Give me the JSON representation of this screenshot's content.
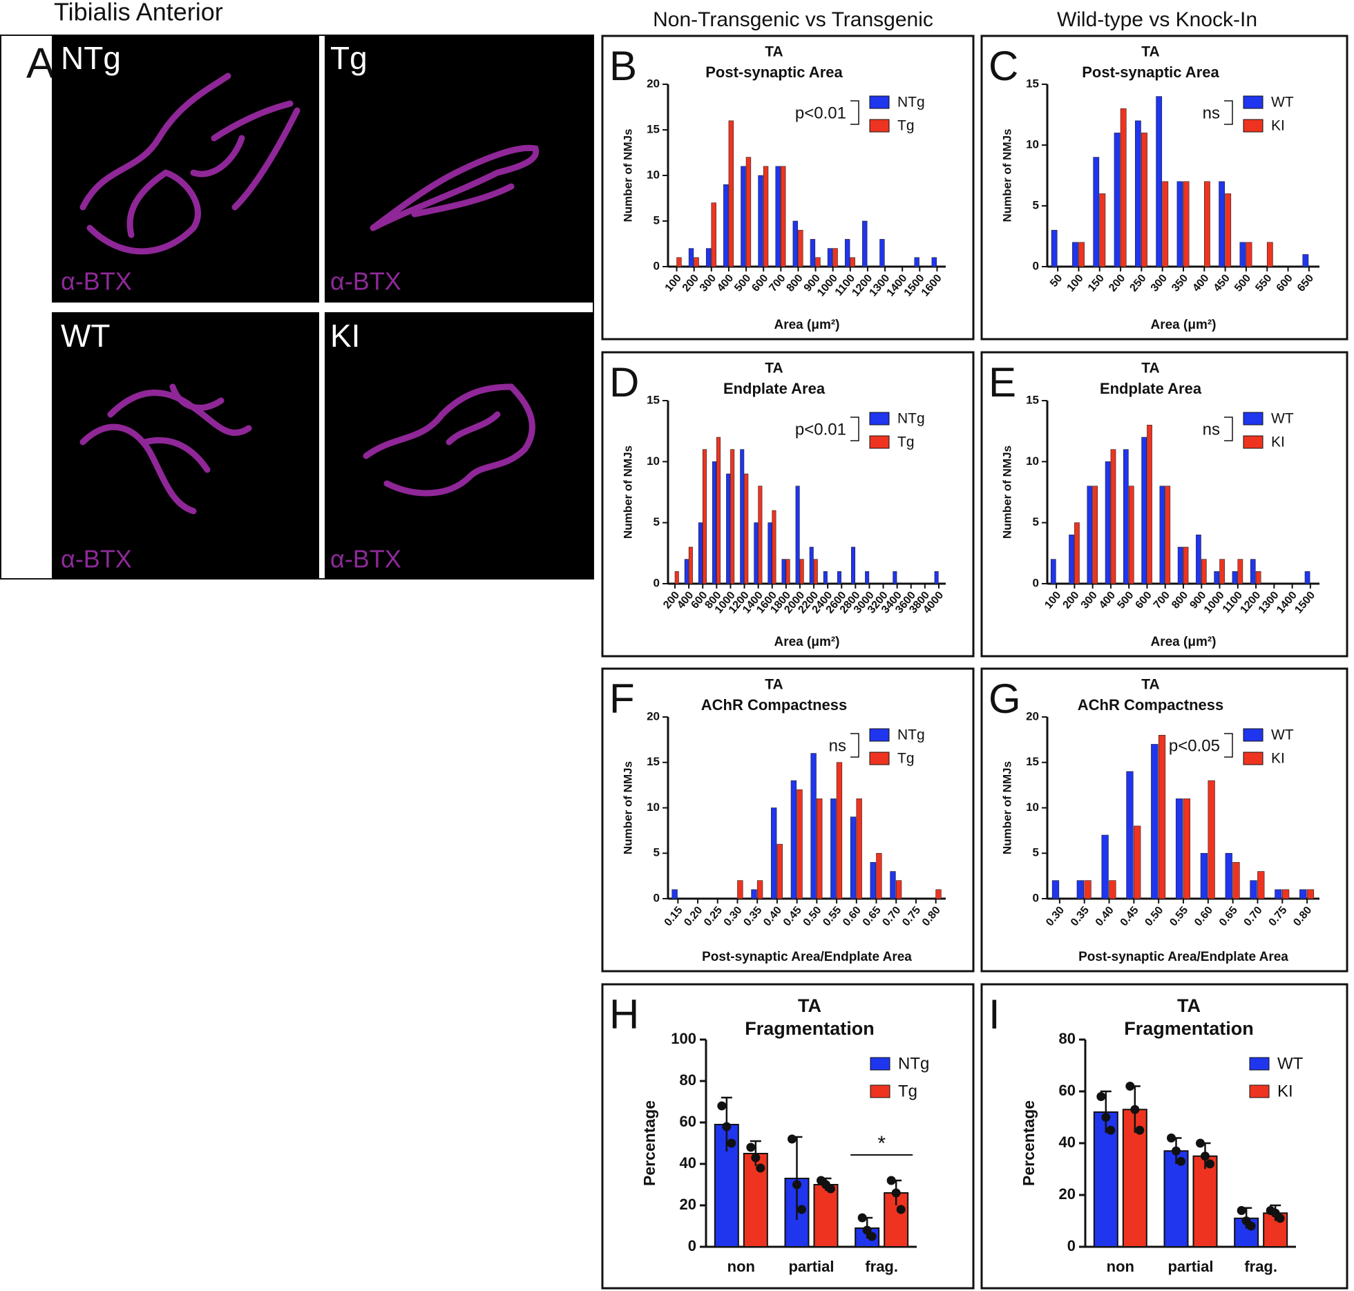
{
  "header": {
    "title": "Tibialis Anterior",
    "columns": [
      "Non-Transgenic vs Transgenic",
      "Wild-type vs Knock-In"
    ]
  },
  "panel_a": {
    "letter": "A",
    "images": [
      {
        "label": "NTg",
        "stain": "α-BTX"
      },
      {
        "label": "Tg",
        "stain": "α-BTX"
      },
      {
        "label": "WT",
        "stain": "α-BTX"
      },
      {
        "label": "KI",
        "stain": "α-BTX"
      }
    ]
  },
  "chart_data": [
    {
      "type": "histogram-bar",
      "panel": "B",
      "title": "TA",
      "subtitle": "Post-synaptic Area",
      "x_label": "Area (μm²)",
      "y_label": "Number of NMJs",
      "annotation": "p<0.01",
      "categories": [
        "100",
        "200",
        "300",
        "400",
        "500",
        "600",
        "700",
        "800",
        "900",
        "1000",
        "1100",
        "1200",
        "1300",
        "1400",
        "1500",
        "1600"
      ],
      "series": [
        {
          "name": "NTg",
          "color": "#1f35ee",
          "values": [
            0,
            2,
            2,
            9,
            11,
            10,
            11,
            5,
            3,
            2,
            3,
            5,
            3,
            0,
            1,
            1
          ]
        },
        {
          "name": "Tg",
          "color": "#ee3420",
          "values": [
            1,
            1,
            7,
            16,
            12,
            11,
            11,
            4,
            1,
            2,
            1,
            0,
            0,
            0,
            0,
            0
          ]
        }
      ],
      "ylim": [
        0,
        20
      ],
      "yticks": [
        0,
        5,
        10,
        15,
        20
      ]
    },
    {
      "type": "histogram-bar",
      "panel": "C",
      "title": "TA",
      "subtitle": "Post-synaptic Area",
      "x_label": "Area (μm²)",
      "y_label": "Number of NMJs",
      "annotation": "ns",
      "categories": [
        "50",
        "100",
        "150",
        "200",
        "250",
        "300",
        "350",
        "400",
        "450",
        "500",
        "550",
        "600",
        "650"
      ],
      "series": [
        {
          "name": "WT",
          "color": "#1f35ee",
          "values": [
            3,
            2,
            9,
            11,
            12,
            14,
            7,
            0,
            7,
            2,
            0,
            0,
            1
          ]
        },
        {
          "name": "KI",
          "color": "#ee3420",
          "values": [
            0,
            2,
            6,
            13,
            11,
            7,
            7,
            7,
            6,
            2,
            2,
            0,
            0
          ]
        }
      ],
      "ylim": [
        0,
        15
      ],
      "yticks": [
        0,
        5,
        10,
        15
      ]
    },
    {
      "type": "histogram-bar",
      "panel": "D",
      "title": "TA",
      "subtitle": "Endplate Area",
      "x_label": "Area (μm²)",
      "y_label": "Number of NMJs",
      "annotation": "p<0.01",
      "categories": [
        "200",
        "400",
        "600",
        "800",
        "1000",
        "1200",
        "1400",
        "1600",
        "1800",
        "2000",
        "2200",
        "2400",
        "2600",
        "2800",
        "3000",
        "3200",
        "3400",
        "3600",
        "3800",
        "4000"
      ],
      "series": [
        {
          "name": "NTg",
          "color": "#1f35ee",
          "values": [
            0,
            2,
            5,
            10,
            9,
            11,
            5,
            5,
            2,
            8,
            3,
            1,
            1,
            3,
            1,
            0,
            1,
            0,
            0,
            1
          ]
        },
        {
          "name": "Tg",
          "color": "#ee3420",
          "values": [
            1,
            3,
            11,
            12,
            11,
            9,
            8,
            6,
            2,
            2,
            2,
            0,
            0,
            0,
            0,
            0,
            0,
            0,
            0,
            0
          ]
        }
      ],
      "ylim": [
        0,
        15
      ],
      "yticks": [
        0,
        5,
        10,
        15
      ]
    },
    {
      "type": "histogram-bar",
      "panel": "E",
      "title": "TA",
      "subtitle": "Endplate Area",
      "x_label": "Area (μm²)",
      "y_label": "Number of NMJs",
      "annotation": "ns",
      "categories": [
        "100",
        "200",
        "300",
        "400",
        "500",
        "600",
        "700",
        "800",
        "900",
        "1000",
        "1100",
        "1200",
        "1300",
        "1400",
        "1500"
      ],
      "series": [
        {
          "name": "WT",
          "color": "#1f35ee",
          "values": [
            2,
            4,
            8,
            10,
            11,
            12,
            8,
            3,
            4,
            1,
            1,
            2,
            0,
            0,
            1
          ]
        },
        {
          "name": "KI",
          "color": "#ee3420",
          "values": [
            0,
            5,
            8,
            11,
            8,
            13,
            8,
            3,
            2,
            2,
            2,
            1,
            0,
            0,
            0
          ]
        }
      ],
      "ylim": [
        0,
        15
      ],
      "yticks": [
        0,
        5,
        10,
        15
      ]
    },
    {
      "type": "histogram-bar",
      "panel": "F",
      "title": "TA",
      "subtitle": "AChR Compactness",
      "x_label": "Post-synaptic Area/Endplate Area",
      "y_label": "Number of NMJs",
      "annotation": "ns",
      "categories": [
        "0.15",
        "0.20",
        "0.25",
        "0.30",
        "0.35",
        "0.40",
        "0.45",
        "0.50",
        "0.55",
        "0.60",
        "0.65",
        "0.70",
        "0.75",
        "0.80"
      ],
      "series": [
        {
          "name": "NTg",
          "color": "#1f35ee",
          "values": [
            1,
            0,
            0,
            0,
            1,
            10,
            13,
            16,
            11,
            9,
            4,
            3,
            0,
            0
          ]
        },
        {
          "name": "Tg",
          "color": "#ee3420",
          "values": [
            0,
            0,
            0,
            2,
            2,
            6,
            12,
            11,
            15,
            11,
            5,
            2,
            0,
            1
          ]
        }
      ],
      "ylim": [
        0,
        20
      ],
      "yticks": [
        0,
        5,
        10,
        15,
        20
      ]
    },
    {
      "type": "histogram-bar",
      "panel": "G",
      "title": "TA",
      "subtitle": "AChR Compactness",
      "x_label": "Post-synaptic Area/Endplate Area",
      "y_label": "Number of NMJs",
      "annotation": "p<0.05",
      "categories": [
        "0.30",
        "0.35",
        "0.40",
        "0.45",
        "0.50",
        "0.55",
        "0.60",
        "0.65",
        "0.70",
        "0.75",
        "0.80"
      ],
      "series": [
        {
          "name": "WT",
          "color": "#1f35ee",
          "values": [
            2,
            2,
            7,
            14,
            17,
            11,
            5,
            5,
            2,
            1,
            1
          ]
        },
        {
          "name": "KI",
          "color": "#ee3420",
          "values": [
            0,
            2,
            2,
            8,
            18,
            11,
            13,
            4,
            3,
            1,
            1
          ]
        }
      ],
      "ylim": [
        0,
        20
      ],
      "yticks": [
        0,
        5,
        10,
        15,
        20
      ]
    },
    {
      "type": "bar",
      "panel": "H",
      "title": "TA",
      "subtitle": "Fragmentation",
      "y_label": "Percentage",
      "annotation": "*",
      "categories": [
        "non",
        "partial",
        "frag."
      ],
      "series": [
        {
          "name": "NTg",
          "color": "#1f35ee",
          "values": [
            59,
            33,
            9
          ],
          "errors": [
            13,
            20,
            5
          ],
          "points": [
            [
              68,
              58,
              50
            ],
            [
              52,
              30,
              18
            ],
            [
              14,
              8,
              5
            ]
          ]
        },
        {
          "name": "Tg",
          "color": "#ee3420",
          "values": [
            45,
            30,
            26
          ],
          "errors": [
            6,
            3,
            6
          ],
          "points": [
            [
              48,
              43,
              38
            ],
            [
              32,
              30,
              28
            ],
            [
              32,
              26,
              18
            ]
          ]
        }
      ],
      "ylim": [
        0,
        100
      ],
      "yticks": [
        0,
        20,
        40,
        60,
        80,
        100
      ]
    },
    {
      "type": "bar",
      "panel": "I",
      "title": "TA",
      "subtitle": "Fragmentation",
      "y_label": "Percentage",
      "categories": [
        "non",
        "partial",
        "frag."
      ],
      "series": [
        {
          "name": "WT",
          "color": "#1f35ee",
          "values": [
            52,
            37,
            11
          ],
          "errors": [
            8,
            5,
            4
          ],
          "points": [
            [
              58,
              50,
              45
            ],
            [
              42,
              37,
              33
            ],
            [
              14,
              10,
              8
            ]
          ]
        },
        {
          "name": "KI",
          "color": "#ee3420",
          "values": [
            53,
            35,
            13
          ],
          "errors": [
            9,
            5,
            3
          ],
          "points": [
            [
              62,
              53,
              45
            ],
            [
              40,
              35,
              32
            ],
            [
              14,
              13,
              11
            ]
          ]
        }
      ],
      "ylim": [
        0,
        80
      ],
      "yticks": [
        0,
        20,
        40,
        60,
        80
      ]
    }
  ]
}
